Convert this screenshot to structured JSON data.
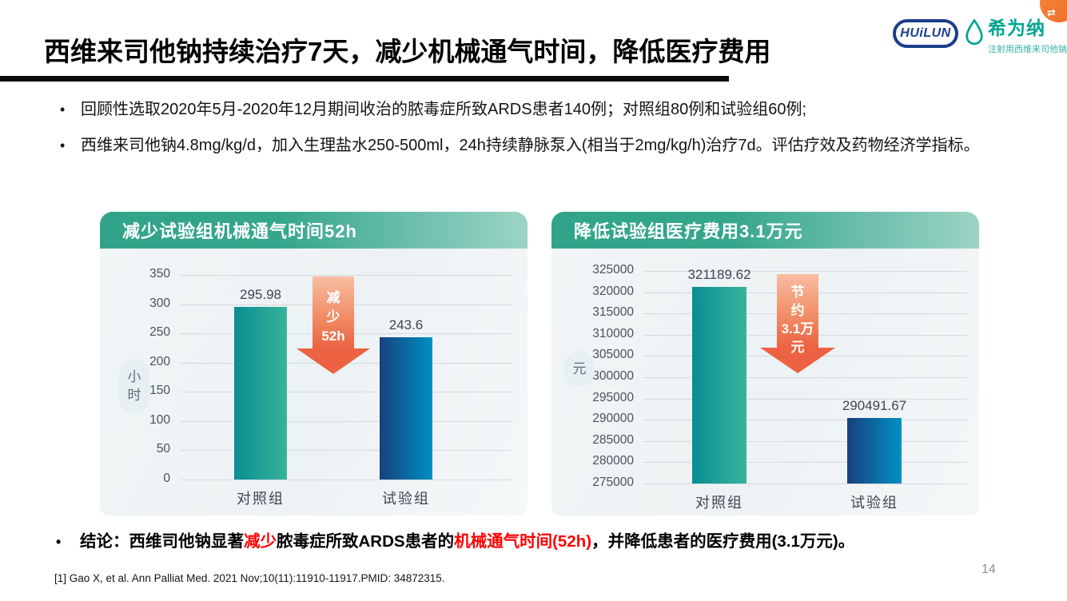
{
  "header": {
    "title": "西维来司他钠持续治疗7天，减少机械通气时间，降低医疗费用",
    "logos": {
      "huilun_label": "HUiLUN",
      "brand_name": "希为纳",
      "brand_reg": "®",
      "brand_sub": "注射用西维来司他钠"
    }
  },
  "bullets": [
    "回顾性选取2020年5月-2020年12月期间收治的脓毒症所致ARDS患者140例；对照组80例和试验组60例;",
    "西维来司他钠4.8mg/kg/d，加入生理盐水250-500ml，24h持续静脉泵入(相当于2mg/kg/h)治疗7d。评估疗效及药物经济学指标。"
  ],
  "chart_data": [
    {
      "type": "bar",
      "title": "减少试验组机械通气时间52h",
      "ylabel": "小时",
      "xlabel": "",
      "categories": [
        "对照组",
        "试验组"
      ],
      "values": [
        295.98,
        243.6
      ],
      "value_labels": [
        "295.98",
        "243.6"
      ],
      "ylim": [
        0,
        350
      ],
      "ytick_step": 50,
      "grid": true,
      "legend": "none",
      "bar_colors": [
        [
          "#0b8d94",
          "#37b39b"
        ],
        [
          "#17427d",
          "#0090c5"
        ]
      ],
      "annotation_arrow": {
        "lines": [
          "减",
          "少",
          "52h"
        ],
        "color": "#ec6243"
      }
    },
    {
      "type": "bar",
      "title": "降低试验组医疗费用3.1万元",
      "ylabel": "元",
      "xlabel": "",
      "categories": [
        "对照组",
        "试验组"
      ],
      "values": [
        321189.62,
        290491.67
      ],
      "value_labels": [
        "321189.62",
        "290491.67"
      ],
      "ylim": [
        275000,
        325000
      ],
      "ytick_step": 5000,
      "grid": true,
      "legend": "none",
      "bar_colors": [
        [
          "#0b8d94",
          "#37b39b"
        ],
        [
          "#17427d",
          "#0090c5"
        ]
      ],
      "annotation_arrow": {
        "lines": [
          "节",
          "约",
          "3.1万",
          "元"
        ],
        "color": "#ec6243"
      }
    }
  ],
  "conclusion": {
    "parts": [
      {
        "text": "结论：西维司他钠显著",
        "color": "black"
      },
      {
        "text": "减少",
        "color": "red"
      },
      {
        "text": "脓毒症所致ARDS患者的",
        "color": "black"
      },
      {
        "text": "机械通气时间(52h)",
        "color": "red"
      },
      {
        "text": "，并降低患者的医疗费用(3.1万元)。",
        "color": "black"
      }
    ]
  },
  "reference": "[1] Gao X, et al. Ann Palliat Med. 2021 Nov;10(11):11910-11917.PMID: 34872315.",
  "page_number": "14",
  "colors": {
    "header_teal": "#35a68d",
    "header_teal_light": "#9cd4c5",
    "panel_bg": "#f0f5f6",
    "arrow_orange": "#ec6243",
    "highlight_red": "#ff0000",
    "logo_blue": "#1a3e8c",
    "brand_teal": "#00a693",
    "title_black": "#000000"
  }
}
